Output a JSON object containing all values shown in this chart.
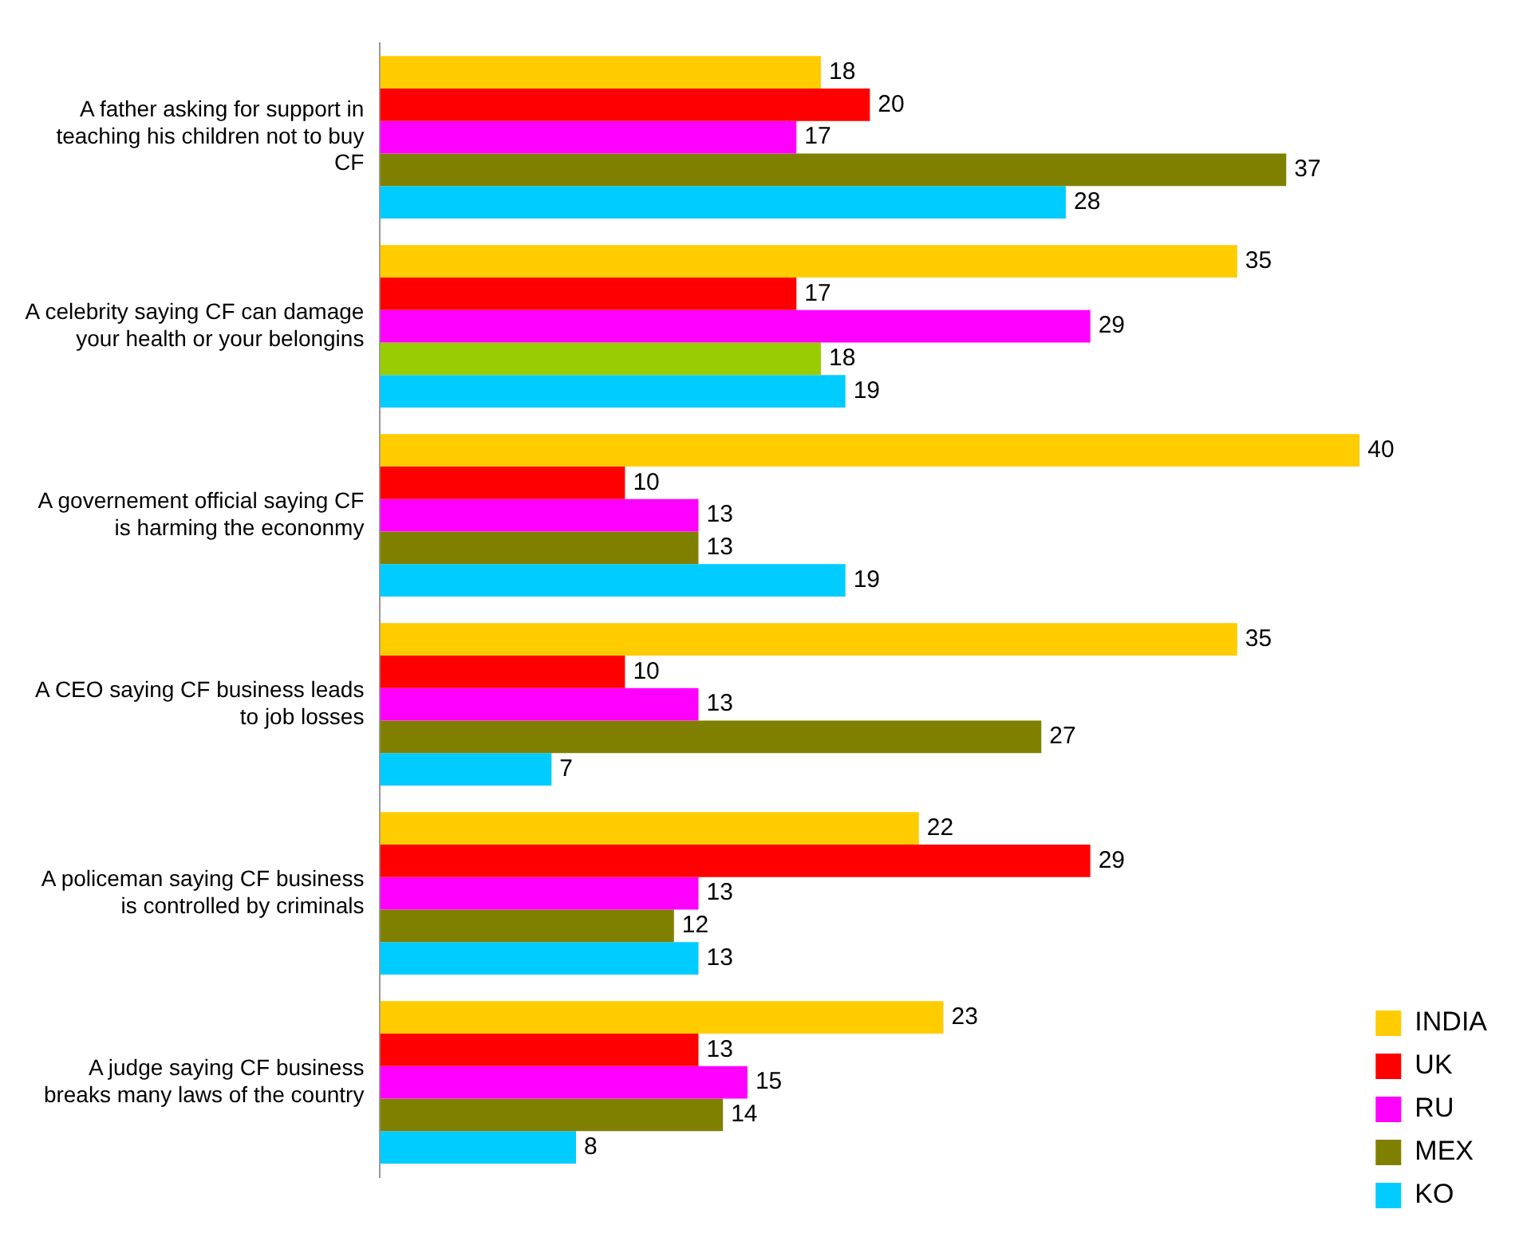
{
  "chart_data": {
    "type": "bar",
    "orientation": "horizontal",
    "categories": [
      "A father asking for support in teaching his children not to buy CF",
      "A celebrity saying CF can damage your health or your belongins",
      "A governement official saying CF is harming the econonmy",
      "A CEO saying CF business leads to job losses",
      "A policeman saying CF business is controlled by criminals",
      "A judge saying CF business breaks many laws of the country"
    ],
    "series": [
      {
        "name": "INDIA",
        "color": "#ffcc00",
        "values": [
          18,
          35,
          40,
          35,
          22,
          23
        ]
      },
      {
        "name": "UK",
        "color": "#ff0000",
        "values": [
          20,
          17,
          10,
          10,
          29,
          13
        ]
      },
      {
        "name": "RU",
        "color": "#ff00ff",
        "values": [
          17,
          29,
          13,
          13,
          13,
          15
        ]
      },
      {
        "name": "MEX",
        "color": "#808000",
        "colors": [
          "#808000",
          "#99cc00",
          "#808000",
          "#808000",
          "#808000",
          "#808000"
        ],
        "values": [
          37,
          18,
          13,
          27,
          12,
          14
        ]
      },
      {
        "name": "KO",
        "color": "#00ccff",
        "values": [
          28,
          19,
          19,
          7,
          13,
          8
        ]
      }
    ],
    "xlim": [
      0,
      40
    ],
    "tick_labels": "y",
    "data_labels": true,
    "legend": "bottom right"
  }
}
